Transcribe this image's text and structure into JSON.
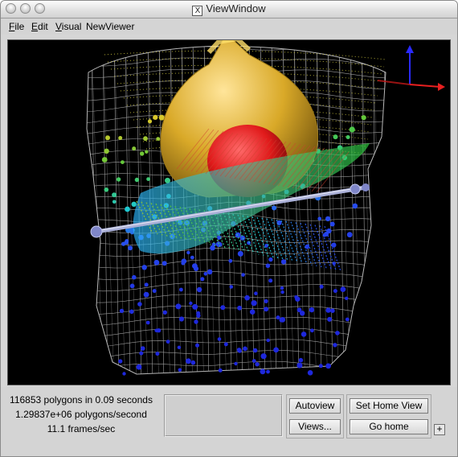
{
  "window": {
    "title": "ViewWindow",
    "title_badge": "X"
  },
  "menu": {
    "items": [
      {
        "label": "File",
        "key": "F",
        "rest": "ile"
      },
      {
        "label": "Edit",
        "key": "E",
        "rest": "dit"
      },
      {
        "label": "Visual",
        "key": "V",
        "rest": "isual"
      },
      {
        "label": "NewViewer",
        "key": "",
        "rest": "NewViewer"
      }
    ]
  },
  "stats": {
    "polygons": "116853 polygons in 0.09 seconds",
    "rate": "1.29837e+06 polygons/second",
    "fps": "11.1 frames/sec"
  },
  "buttons": {
    "autoview": "Autoview",
    "views": "Views...",
    "set_home": "Set Home View",
    "go_home": "Go home",
    "plus": "+"
  },
  "viewport": {
    "background": "#000000",
    "mesh_color": "#b8b8b8",
    "heart_color": "#d9a928",
    "core_color": "#e01a1a",
    "probe_color": "#7f86c8",
    "axis": {
      "x_color": "#e82020",
      "y_color": "#2a2aff"
    }
  }
}
